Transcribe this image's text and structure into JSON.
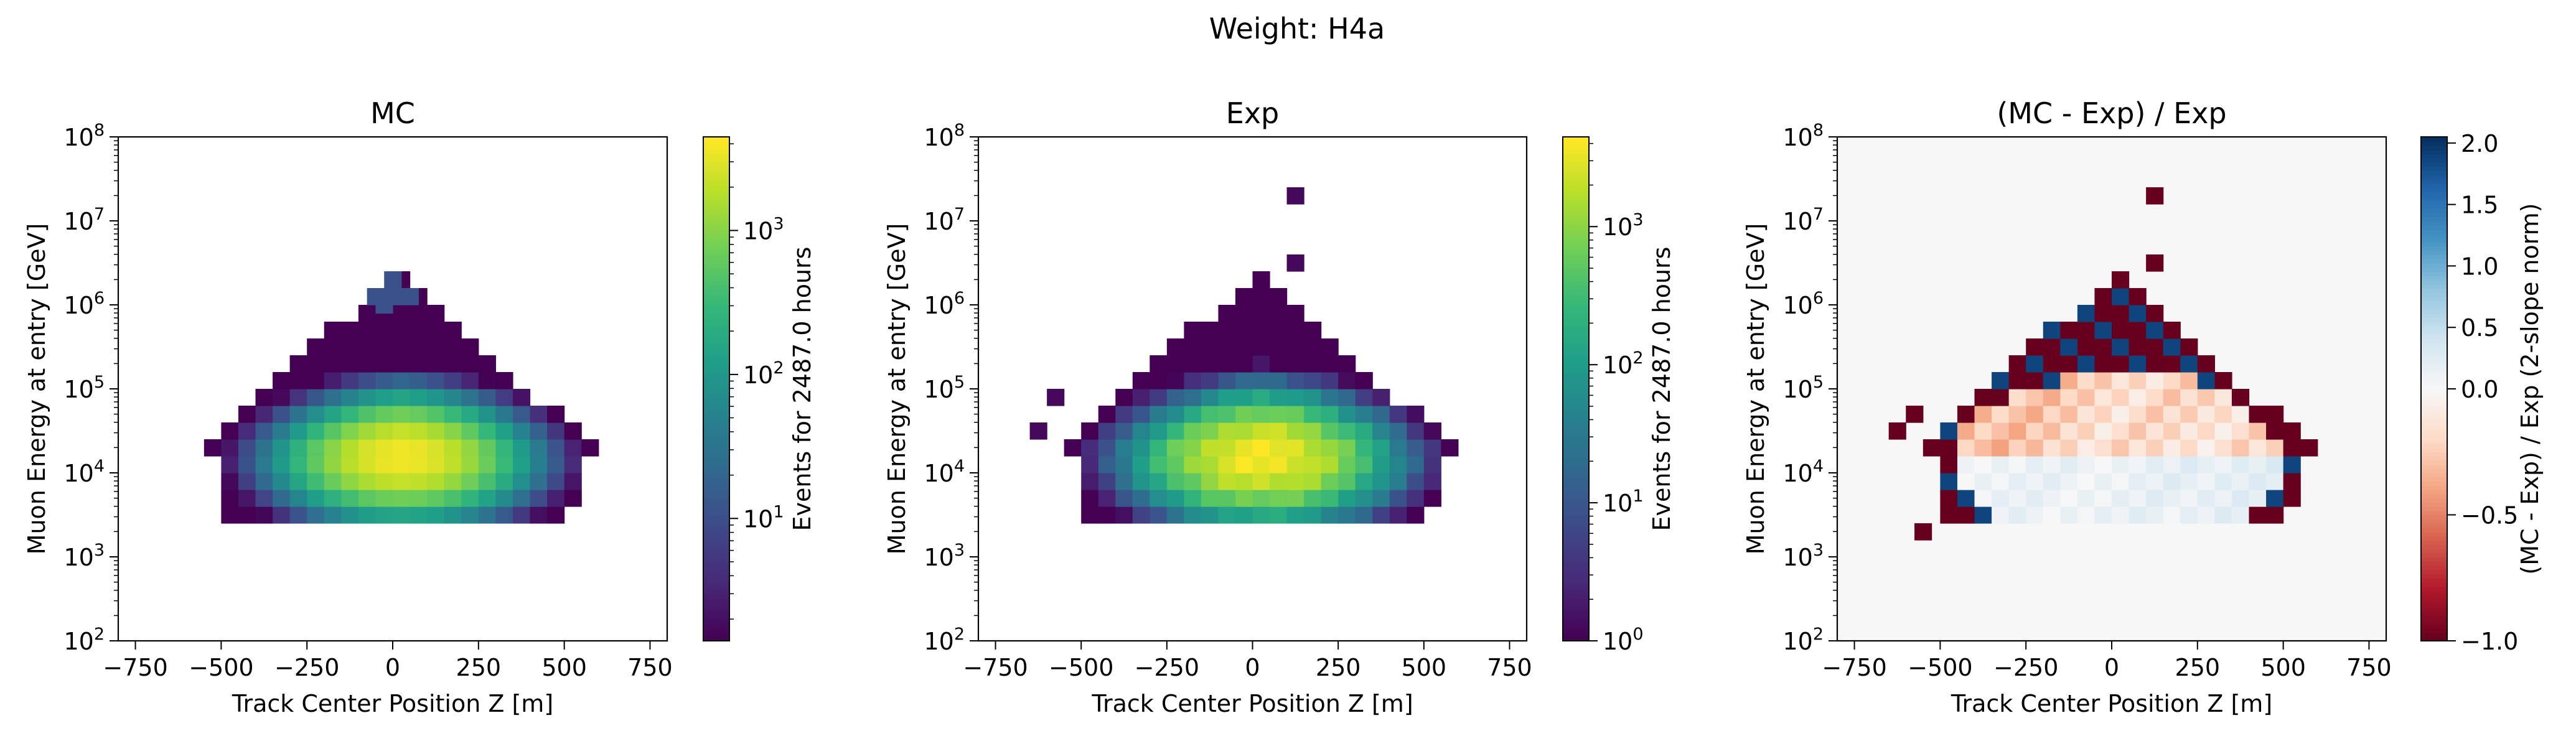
{
  "suptitle": "Weight: H4a",
  "colors": {
    "viridis": [
      "#440154",
      "#482878",
      "#3e4989",
      "#31688e",
      "#26828e",
      "#1f9e89",
      "#35b779",
      "#6ece58",
      "#b5de2b",
      "#fde725"
    ],
    "rdbu": [
      "#67001f",
      "#b2182b",
      "#d6604d",
      "#f4a582",
      "#fddbc7",
      "#f7f7f7",
      "#d1e5f0",
      "#92c5de",
      "#4393c3",
      "#2166ac",
      "#053061"
    ],
    "background_ratio": "#f7f7f7"
  },
  "chart_data": [
    {
      "type": "heatmap",
      "title": "MC",
      "xlabel": "Track Center Position Z [m]",
      "ylabel": "Muon Energy at entry [GeV]",
      "xlim": [
        -800,
        800
      ],
      "ylim_log10": [
        2,
        8
      ],
      "yscale": "log",
      "x_ticks": [
        -750,
        -500,
        -250,
        0,
        250,
        500,
        750
      ],
      "x_tick_labels": [
        "−750",
        "−500",
        "−250",
        "0",
        "250",
        "500",
        "750"
      ],
      "y_ticks_log10": [
        2,
        3,
        4,
        5,
        6,
        7,
        8
      ],
      "x_bin_edges": [
        -550,
        -500,
        -450,
        -400,
        -350,
        -300,
        -250,
        -200,
        -150,
        -100,
        -50,
        0,
        50,
        100,
        150,
        200,
        250,
        300,
        350,
        400,
        450,
        500,
        550,
        600
      ],
      "y_bin_edges_log10": [
        3.4,
        3.6,
        3.8,
        4.0,
        4.2,
        4.4,
        4.6,
        4.8,
        5.0,
        5.2,
        5.4,
        5.6,
        5.8,
        6.0,
        6.2,
        6.4
      ],
      "colorbar": {
        "label": "Events for 2487.0 hours",
        "scale": "log",
        "range_log10": [
          0.15,
          3.65
        ],
        "ticks_log10": [
          1,
          2,
          3
        ]
      }
    },
    {
      "type": "heatmap",
      "title": "Exp",
      "xlabel": "Track Center Position Z [m]",
      "ylabel": "Muon Energy at entry [GeV]",
      "xlim": [
        -800,
        800
      ],
      "ylim_log10": [
        2,
        8
      ],
      "yscale": "log",
      "x_ticks": [
        -750,
        -500,
        -250,
        0,
        250,
        500,
        750
      ],
      "x_tick_labels": [
        "−750",
        "−500",
        "−250",
        "0",
        "250",
        "500",
        "750"
      ],
      "y_ticks_log10": [
        2,
        3,
        4,
        5,
        6,
        7,
        8
      ],
      "colorbar": {
        "label": "Events for 2487.0 hours",
        "scale": "log",
        "range_log10": [
          0,
          3.65
        ],
        "ticks_log10": [
          0,
          1,
          2,
          3
        ]
      }
    },
    {
      "type": "heatmap",
      "title": "(MC - Exp) / Exp",
      "xlabel": "Track Center Position Z [m]",
      "ylabel": "Muon Energy at entry [GeV]",
      "xlim": [
        -800,
        800
      ],
      "ylim_log10": [
        2,
        8
      ],
      "yscale": "log",
      "x_ticks": [
        -750,
        -500,
        -250,
        0,
        250,
        500,
        750
      ],
      "x_tick_labels": [
        "−750",
        "−500",
        "−250",
        "0",
        "250",
        "500",
        "750"
      ],
      "y_ticks_log10": [
        2,
        3,
        4,
        5,
        6,
        7,
        8
      ],
      "colorbar": {
        "label": "(MC - Exp) / Exp (2-slope norm)",
        "scale": "two-slope",
        "vmin": -1.0,
        "vcenter": 0.0,
        "vmax": 2.05,
        "ticks": [
          -1.0,
          -0.5,
          0.0,
          0.5,
          1.0,
          1.5,
          2.0
        ],
        "tick_labels": [
          "−1.0",
          "−0.5",
          "0.0",
          "0.5",
          "1.0",
          "1.5",
          "2.0"
        ]
      }
    }
  ],
  "note_rows": "Cells are listed per y-bin (bottom to top) as [x_start, x_end, value] runs; MC/Exp values are log10(events), ratio values are (MC-Exp)/Exp.",
  "mc_rows": [
    [
      -500,
      -350,
      0.6
    ],
    [
      -350,
      -300,
      0.3
    ],
    [
      -300,
      -250,
      0.6
    ],
    [
      -250,
      -200,
      0.2
    ],
    [
      -200,
      -100,
      0.6
    ],
    [
      -100,
      -50,
      0.2
    ],
    [
      -50,
      0,
      0.7
    ],
    [
      0,
      50,
      0.2
    ],
    [
      50,
      450,
      0.8
    ]
  ]
}
